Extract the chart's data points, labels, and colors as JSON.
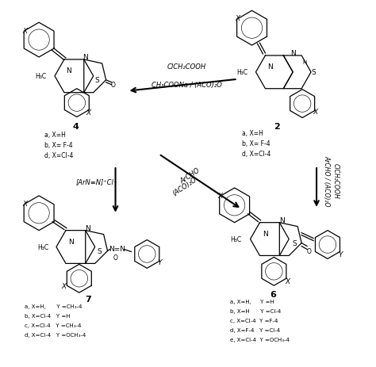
{
  "bg_color": "#ffffff",
  "fig_width": 4.74,
  "fig_height": 4.64,
  "dpi": 100,
  "arrow1_label1": "ClCH₂COOH",
  "arrow1_label2": "CH₃COONa / (ACO)₂O",
  "arrow2_label1": "ArCHO",
  "arrow2_label2": "(ACO)₂O",
  "arrow3_label1": "ArCHO / (ACO)₂O",
  "arrow3_label2": "ClCH₂COOH",
  "arrow4_label": "[ArN≡N]⁺Cl⁻",
  "label2": "2",
  "label4": "4",
  "label6": "6",
  "label7": "7",
  "comp2_subs": [
    "a, X=H",
    "b, X= F-4",
    "d, X=Cl-4"
  ],
  "comp4_subs": [
    "a, X=H",
    "b, X= F-4",
    "d, X=Cl-4"
  ],
  "comp6_subs": [
    "a, X=H,     Y =H",
    "b, X=H      Y =Cl-4",
    "c, X=Cl-4  Y =F-4",
    "d, X=F-4   Y =Cl-4",
    "e, X=Cl-4  Y =OCH₃-4"
  ],
  "comp7_subs": [
    "a, X=H,      Y =CH₃-4",
    "b, X=Cl-4   Y =H",
    "c, X=Cl-4   Y =CH₃-4",
    "d, X=Cl-4   Y =OCH₃-4"
  ]
}
